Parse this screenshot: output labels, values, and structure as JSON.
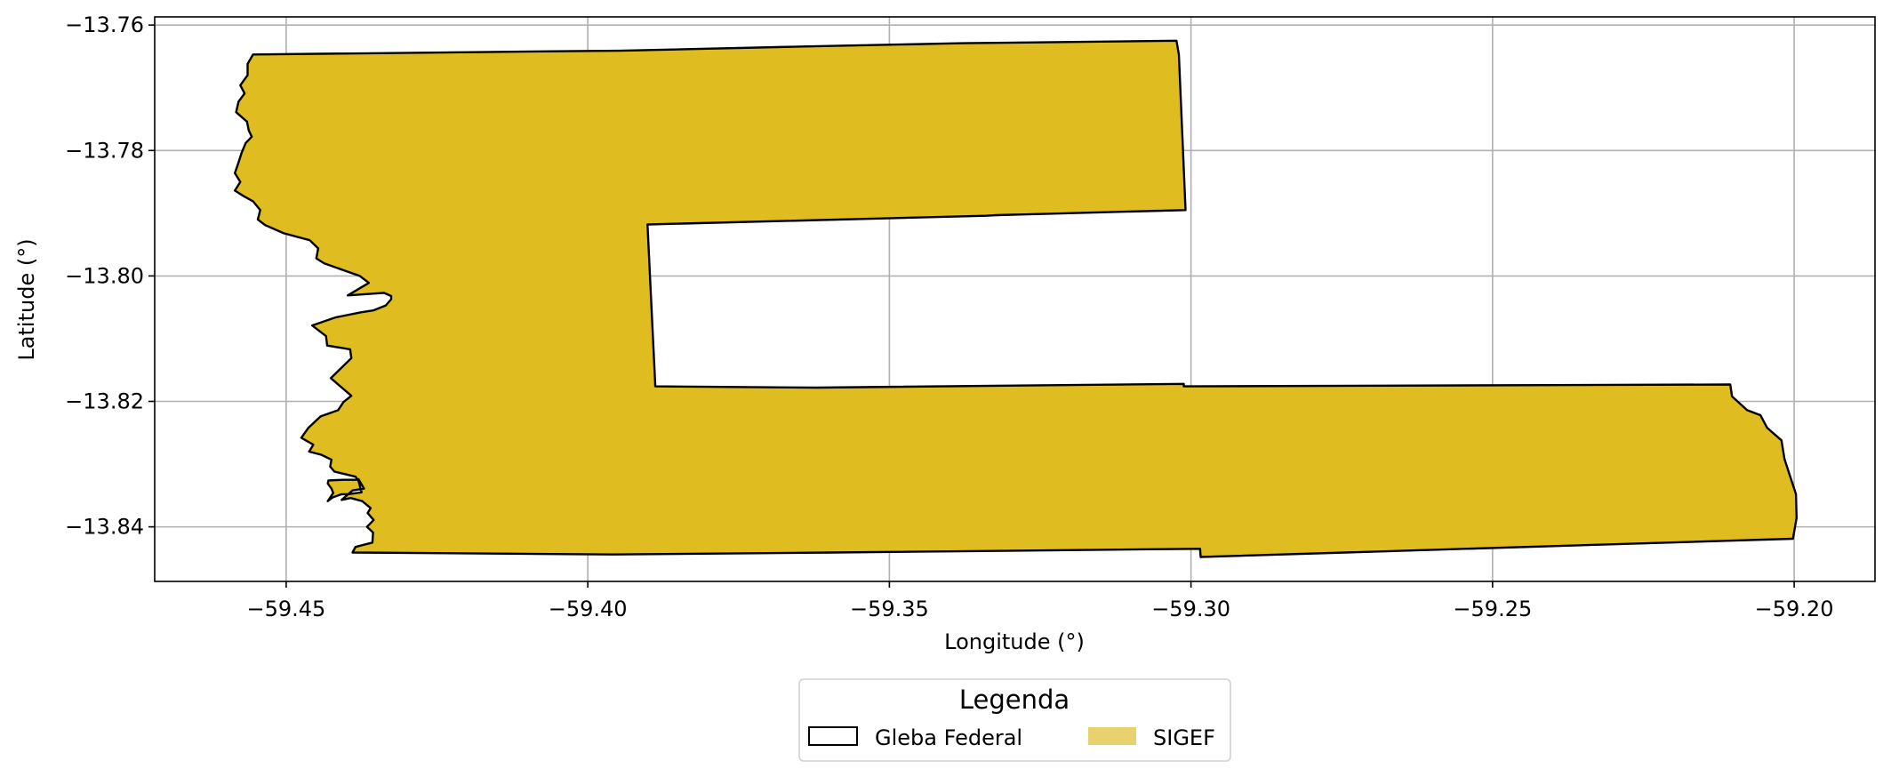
{
  "chart_data": {
    "type": "map",
    "xlabel": "Longitude (°)",
    "ylabel": "Latitude (°)",
    "xlim": [
      -59.4718,
      -59.1866
    ],
    "ylim": [
      -13.8487,
      -13.7587
    ],
    "grid": true,
    "x_ticks": [
      -59.45,
      -59.4,
      -59.35,
      -59.3,
      -59.25,
      -59.2
    ],
    "x_tick_labels": [
      "−59.45",
      "−59.40",
      "−59.35",
      "−59.30",
      "−59.25",
      "−59.20"
    ],
    "y_ticks": [
      -13.76,
      -13.78,
      -13.8,
      -13.82,
      -13.84
    ],
    "y_tick_labels": [
      "−13.76",
      "−13.78",
      "−13.80",
      "−13.82",
      "−13.84"
    ],
    "legend": {
      "title": "Legenda",
      "placement": "bottom-center",
      "entries": [
        {
          "label": "Gleba Federal",
          "style": "outline",
          "edge": "#000000",
          "fill": "none"
        },
        {
          "label": "SIGEF",
          "style": "fill",
          "fill": "#E8D26E"
        }
      ]
    },
    "colors": {
      "polygon_fill": "#DFBD21",
      "polygon_edge": "#000000",
      "grid": "#b0b0b0"
    },
    "polygon_outline": [
      [
        -59.4555,
        -13.7647
      ],
      [
        -59.4075,
        -13.7642
      ],
      [
        -59.3948,
        -13.7641
      ],
      [
        -59.3635,
        -13.7634
      ],
      [
        -59.3377,
        -13.7629
      ],
      [
        -59.3024,
        -13.7625
      ],
      [
        -59.302,
        -13.7647
      ],
      [
        -59.3009,
        -13.7895
      ],
      [
        -59.3322,
        -13.7903
      ],
      [
        -59.334,
        -13.7904
      ],
      [
        -59.3901,
        -13.7918
      ],
      [
        -59.3888,
        -13.8176
      ],
      [
        -59.3621,
        -13.8178
      ],
      [
        -59.3012,
        -13.8172
      ],
      [
        -59.3012,
        -13.8176
      ],
      [
        -59.2106,
        -13.8173
      ],
      [
        -59.2103,
        -13.8192
      ],
      [
        -59.2078,
        -13.8214
      ],
      [
        -59.2056,
        -13.8222
      ],
      [
        -59.2045,
        -13.8242
      ],
      [
        -59.2021,
        -13.8262
      ],
      [
        -59.2016,
        -13.8292
      ],
      [
        -59.1997,
        -13.8348
      ],
      [
        -59.1996,
        -13.8386
      ],
      [
        -59.2002,
        -13.8419
      ],
      [
        -59.2984,
        -13.8448
      ],
      [
        -59.2985,
        -13.8435
      ],
      [
        -59.3595,
        -13.8441
      ],
      [
        -59.3957,
        -13.8444
      ],
      [
        -59.439,
        -13.8441
      ],
      [
        -59.4385,
        -13.8432
      ],
      [
        -59.4357,
        -13.8425
      ],
      [
        -59.4356,
        -13.8409
      ],
      [
        -59.4366,
        -13.84
      ],
      [
        -59.4355,
        -13.8389
      ],
      [
        -59.4365,
        -13.8378
      ],
      [
        -59.4365,
        -13.8378
      ],
      [
        -59.436,
        -13.837
      ],
      [
        -59.4374,
        -13.8359
      ],
      [
        -59.4393,
        -13.8354
      ],
      [
        -59.4408,
        -13.8357
      ],
      [
        -59.439,
        -13.8342
      ],
      [
        -59.4371,
        -13.8339
      ],
      [
        -59.438,
        -13.8324
      ],
      [
        -59.4385,
        -13.8325
      ],
      [
        -59.4405,
        -13.8325
      ],
      [
        -59.443,
        -13.8326
      ],
      [
        -59.4431,
        -13.8331
      ],
      [
        -59.4425,
        -13.8339
      ],
      [
        -59.4422,
        -13.8346
      ],
      [
        -59.4431,
        -13.8359
      ],
      [
        -59.4423,
        -13.8353
      ],
      [
        -59.4408,
        -13.8348
      ],
      [
        -59.4397,
        -13.8348
      ],
      [
        -59.4375,
        -13.8345
      ],
      [
        -59.438,
        -13.8327
      ],
      [
        -59.4385,
        -13.832
      ],
      [
        -59.442,
        -13.8312
      ],
      [
        -59.4427,
        -13.8304
      ],
      [
        -59.4425,
        -13.8293
      ],
      [
        -59.4442,
        -13.8285
      ],
      [
        -59.4462,
        -13.828
      ],
      [
        -59.4455,
        -13.8269
      ],
      [
        -59.4475,
        -13.8258
      ],
      [
        -59.4463,
        -13.8242
      ],
      [
        -59.4443,
        -13.8224
      ],
      [
        -59.4414,
        -13.8214
      ],
      [
        -59.4405,
        -13.8201
      ],
      [
        -59.4392,
        -13.8191
      ],
      [
        -59.4426,
        -13.8163
      ],
      [
        -59.4392,
        -13.8131
      ],
      [
        -59.4394,
        -13.8117
      ],
      [
        -59.4432,
        -13.8111
      ],
      [
        -59.4434,
        -13.8096
      ],
      [
        -59.4457,
        -13.8079
      ],
      [
        -59.4418,
        -13.8066
      ],
      [
        -59.4376,
        -13.8058
      ],
      [
        -59.4356,
        -13.8055
      ],
      [
        -59.4335,
        -13.8047
      ],
      [
        -59.4326,
        -13.8037
      ],
      [
        -59.4326,
        -13.8032
      ],
      [
        -59.4338,
        -13.8027
      ],
      [
        -59.4398,
        -13.8031
      ],
      [
        -59.4363,
        -13.8011
      ],
      [
        -59.4378,
        -13.8
      ],
      [
        -59.4437,
        -13.798
      ],
      [
        -59.445,
        -13.7972
      ],
      [
        -59.4447,
        -13.7956
      ],
      [
        -59.4461,
        -13.7943
      ],
      [
        -59.4504,
        -13.7932
      ],
      [
        -59.4535,
        -13.7919
      ],
      [
        -59.4547,
        -13.791
      ],
      [
        -59.4543,
        -13.7895
      ],
      [
        -59.4555,
        -13.7881
      ],
      [
        -59.457,
        -13.7873
      ],
      [
        -59.4585,
        -13.7864
      ],
      [
        -59.4576,
        -13.785
      ],
      [
        -59.4585,
        -13.7836
      ],
      [
        -59.4579,
        -13.7819
      ],
      [
        -59.4574,
        -13.7804
      ],
      [
        -59.4567,
        -13.7788
      ],
      [
        -59.4557,
        -13.7778
      ],
      [
        -59.4562,
        -13.7768
      ],
      [
        -59.4565,
        -13.7754
      ],
      [
        -59.4583,
        -13.7739
      ],
      [
        -59.4579,
        -13.7722
      ],
      [
        -59.4569,
        -13.7709
      ],
      [
        -59.4576,
        -13.7696
      ],
      [
        -59.4564,
        -13.768
      ],
      [
        -59.4564,
        -13.7662
      ],
      [
        -59.4555,
        -13.7647
      ]
    ]
  }
}
